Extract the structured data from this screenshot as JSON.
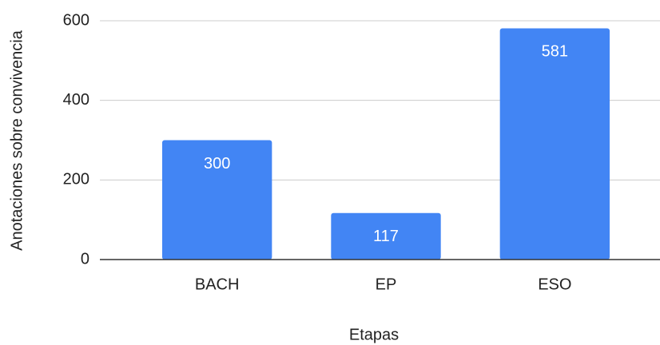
{
  "chart_data": {
    "type": "bar",
    "x_label": "Etapas",
    "y_label": "Anotaciones sobre convivencia",
    "categories": [
      "BACH",
      "EP",
      "ESO"
    ],
    "values": [
      300,
      117,
      581
    ],
    "color": "#4285f4",
    "ylim": [
      0,
      600
    ],
    "yticks": [
      0,
      200,
      400,
      600
    ],
    "grid": true,
    "data_labels": true
  }
}
